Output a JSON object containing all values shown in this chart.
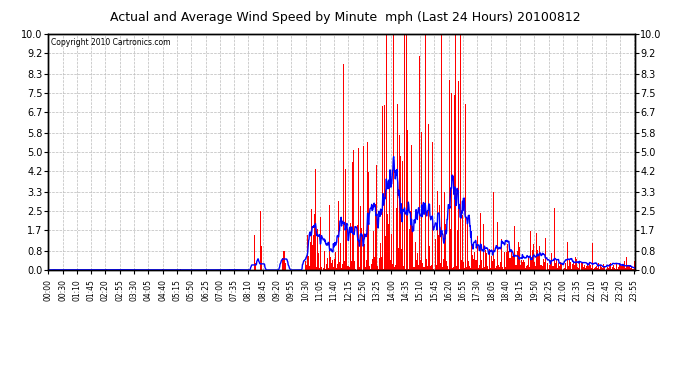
{
  "title": "Actual and Average Wind Speed by Minute  mph (Last 24 Hours) 20100812",
  "copyright": "Copyright 2010 Cartronics.com",
  "background_color": "#ffffff",
  "plot_bg_color": "#ffffff",
  "bar_color": "#ff0000",
  "line_color": "#0000ff",
  "yticks": [
    0.0,
    0.8,
    1.7,
    2.5,
    3.3,
    4.2,
    5.0,
    5.8,
    6.7,
    7.5,
    8.3,
    9.2,
    10.0
  ],
  "ylim": [
    0.0,
    10.0
  ],
  "n_minutes": 1440,
  "x_tick_labels": [
    "00:00",
    "00:30",
    "01:10",
    "01:45",
    "02:20",
    "02:55",
    "03:30",
    "04:05",
    "04:40",
    "05:15",
    "05:50",
    "06:25",
    "07:00",
    "07:35",
    "08:10",
    "08:45",
    "09:20",
    "09:55",
    "10:30",
    "11:05",
    "11:40",
    "12:15",
    "12:50",
    "13:25",
    "14:00",
    "14:35",
    "15:10",
    "15:45",
    "16:20",
    "16:55",
    "17:30",
    "18:05",
    "18:40",
    "19:15",
    "19:50",
    "20:25",
    "21:00",
    "21:35",
    "22:10",
    "22:45",
    "23:20",
    "23:55"
  ]
}
